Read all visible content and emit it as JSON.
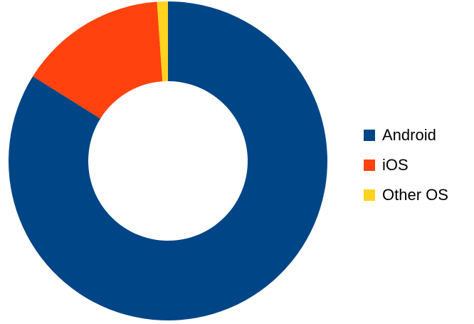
{
  "chart_data": {
    "type": "pie",
    "donut": true,
    "legend_position": "right",
    "slices": [
      {
        "label": "Android",
        "value": 83.9,
        "color": "#004586"
      },
      {
        "label": "iOS",
        "value": 15.0,
        "color": "#ff420e"
      },
      {
        "label": "Other OS",
        "value": 1.1,
        "color": "#ffd320"
      }
    ]
  }
}
